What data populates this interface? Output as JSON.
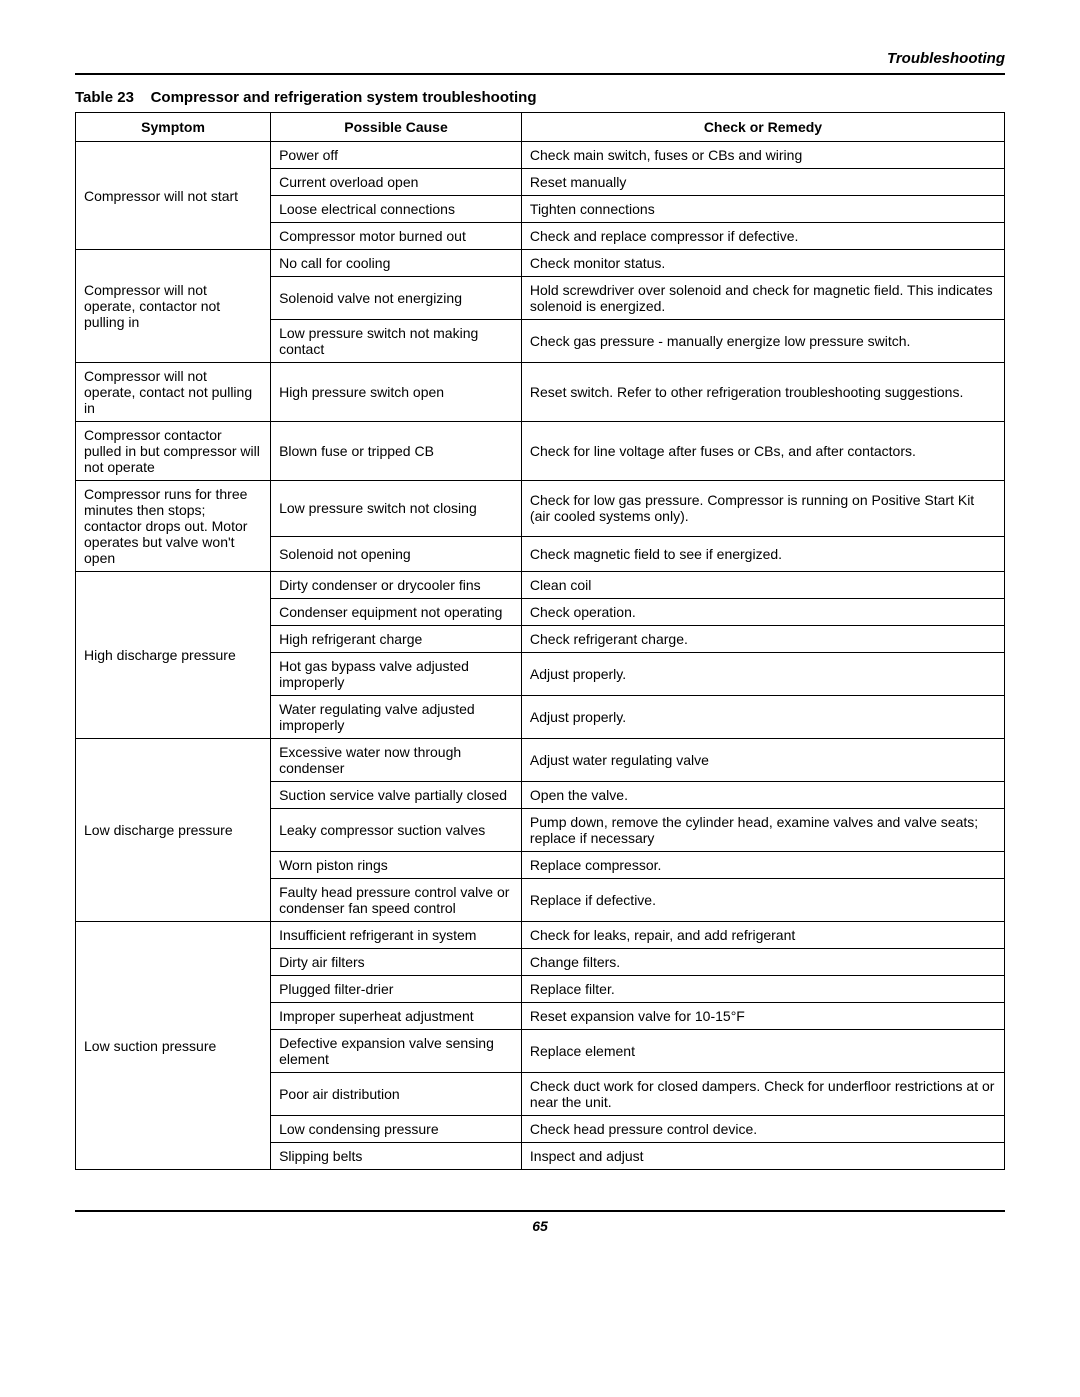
{
  "header": {
    "section": "Troubleshooting"
  },
  "caption": {
    "label": "Table 23",
    "title": "Compressor and refrigeration system troubleshooting"
  },
  "columns": {
    "symptom": "Symptom",
    "cause": "Possible Cause",
    "remedy": "Check or Remedy"
  },
  "groups": [
    {
      "symptom": "Compressor will not start",
      "rows": [
        {
          "cause": "Power off",
          "remedy": "Check main switch, fuses or CBs and wiring"
        },
        {
          "cause": "Current overload open",
          "remedy": "Reset manually"
        },
        {
          "cause": "Loose electrical connections",
          "remedy": "Tighten connections"
        },
        {
          "cause": "Compressor motor burned out",
          "remedy": "Check and replace compressor if defective."
        }
      ]
    },
    {
      "symptom": "Compressor will not operate, contactor not pulling in",
      "rows": [
        {
          "cause": "No call for cooling",
          "remedy": "Check monitor status."
        },
        {
          "cause": "Solenoid valve not energizing",
          "remedy": "Hold screwdriver over solenoid and check for magnetic field. This indicates solenoid is energized."
        },
        {
          "cause": "Low pressure switch not making contact",
          "remedy": "Check gas pressure - manually energize low pressure switch."
        }
      ]
    },
    {
      "symptom": "Compressor will not operate, contact not pulling in",
      "rows": [
        {
          "cause": "High pressure switch open",
          "remedy": "Reset switch. Refer to other refrigeration troubleshooting suggestions."
        }
      ]
    },
    {
      "symptom": "Compressor contactor pulled in but compressor will not operate",
      "rows": [
        {
          "cause": "Blown fuse or tripped CB",
          "remedy": "Check for line voltage after fuses or CBs, and after contactors."
        }
      ]
    },
    {
      "symptom": "Compressor runs for three minutes then stops; contactor drops out. Motor operates but valve won't open",
      "rows": [
        {
          "cause": "Low pressure switch not closing",
          "remedy": "Check for low gas pressure. Compressor is running on Positive Start Kit (air cooled systems only)."
        },
        {
          "cause": "Solenoid not opening",
          "remedy": "Check magnetic field to see if energized."
        }
      ]
    },
    {
      "symptom": "High discharge pressure",
      "rows": [
        {
          "cause": "Dirty condenser or drycooler fins",
          "remedy": "Clean coil"
        },
        {
          "cause": "Condenser equipment not operating",
          "remedy": "Check operation."
        },
        {
          "cause": "High refrigerant charge",
          "remedy": "Check refrigerant charge."
        },
        {
          "cause": "Hot gas bypass valve adjusted improperly",
          "remedy": "Adjust properly."
        },
        {
          "cause": "Water regulating valve adjusted improperly",
          "remedy": "Adjust properly."
        }
      ]
    },
    {
      "symptom": "Low discharge pressure",
      "rows": [
        {
          "cause": "Excessive water now through condenser",
          "remedy": "Adjust water regulating valve"
        },
        {
          "cause": "Suction service valve partially closed",
          "remedy": "Open the valve."
        },
        {
          "cause": "Leaky compressor suction valves",
          "remedy": "Pump down, remove the cylinder head, examine valves and valve seats; replace if necessary"
        },
        {
          "cause": "Worn piston rings",
          "remedy": "Replace compressor."
        },
        {
          "cause": "Faulty head pressure control valve or condenser fan speed control",
          "remedy": "Replace if defective."
        }
      ]
    },
    {
      "symptom": "Low suction pressure",
      "rows": [
        {
          "cause": "Insufficient refrigerant in system",
          "remedy": "Check for leaks, repair, and add refrigerant"
        },
        {
          "cause": "Dirty air filters",
          "remedy": "Change filters."
        },
        {
          "cause": "Plugged filter-drier",
          "remedy": "Replace filter."
        },
        {
          "cause": "Improper superheat adjustment",
          "remedy": "Reset expansion valve for 10-15°F"
        },
        {
          "cause": "Defective expansion valve sensing element",
          "remedy": "Replace element"
        },
        {
          "cause": "Poor air distribution",
          "remedy": "Check duct work for closed dampers. Check for underfloor restrictions at or near the unit."
        },
        {
          "cause": "Low condensing pressure",
          "remedy": "Check head pressure control device."
        },
        {
          "cause": "Slipping belts",
          "remedy": "Inspect and adjust"
        }
      ]
    }
  ],
  "footer": {
    "page": "65"
  }
}
